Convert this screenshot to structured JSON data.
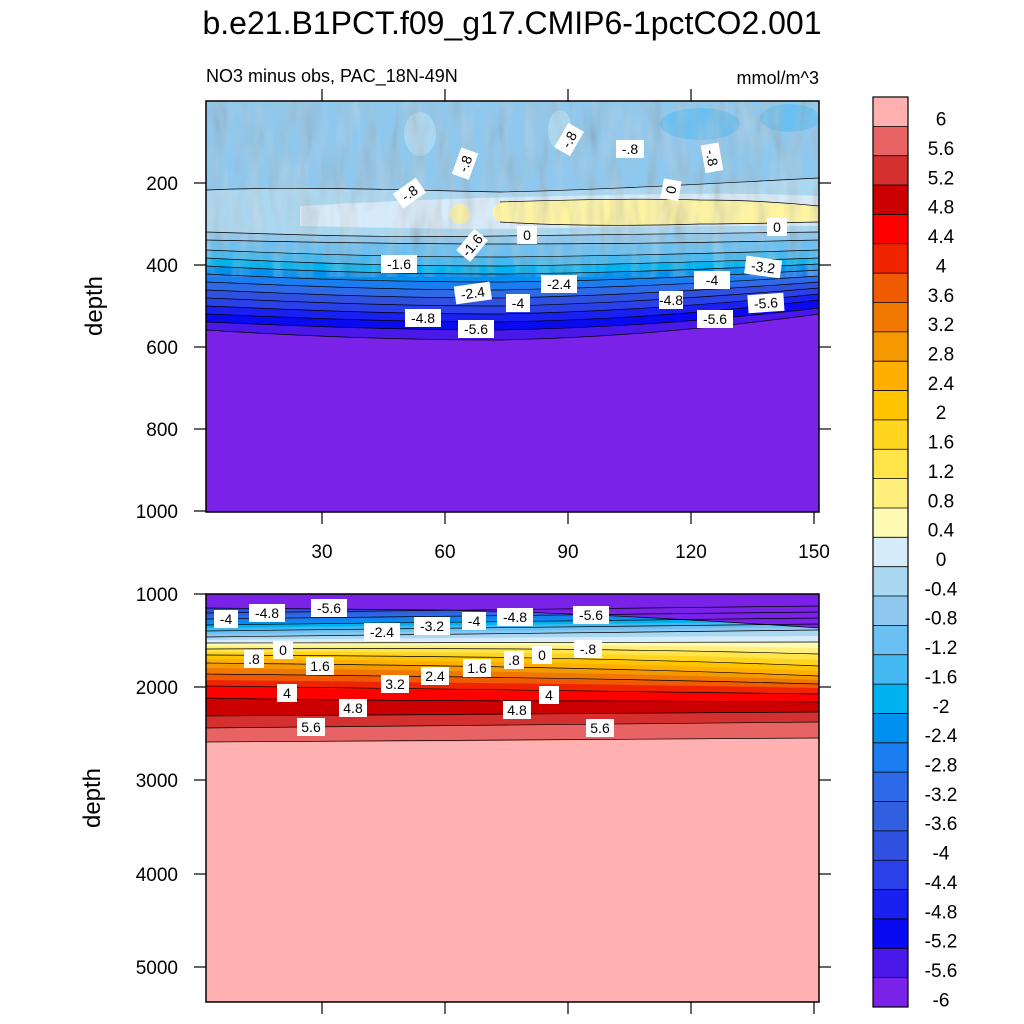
{
  "chart_data": {
    "type": "contour",
    "title": "b.e21.B1PCT.f09_g17.CMIP6-1pctCO2.001",
    "subtitle_left": "NO3 minus obs, PAC_18N-49N",
    "units": "mmol/m^3",
    "colorbar": {
      "levels": [
        "6",
        "5.6",
        "5.2",
        "4.8",
        "4.4",
        "4",
        "3.6",
        "3.2",
        "2.8",
        "2.4",
        "2",
        "1.6",
        "1.2",
        "0.8",
        "0.4",
        "0",
        "-0.4",
        "-0.8",
        "-1.2",
        "-1.6",
        "-2",
        "-2.4",
        "-2.8",
        "-3.2",
        "-3.6",
        "-4",
        "-4.4",
        "-4.8",
        "-5.2",
        "-5.6",
        "-6"
      ],
      "colors": [
        "#ffb0b0",
        "#e86464",
        "#d43030",
        "#cc0000",
        "#ff0000",
        "#f02400",
        "#f05a00",
        "#f07800",
        "#f49a00",
        "#ffaf00",
        "#ffc400",
        "#ffd520",
        "#ffe44a",
        "#fff07e",
        "#fffab4",
        "#d7ecfa",
        "#aad8f2",
        "#8ec8ee",
        "#6ac0f2",
        "#44b8f0",
        "#00b2f0",
        "#0090f0",
        "#1a7ef0",
        "#2c6ae8",
        "#3060e0",
        "#3050e0",
        "#2a40e8",
        "#1a20f0",
        "#0a0af0",
        "#4a18e8",
        "#7a22e8"
      ]
    },
    "panels": [
      {
        "name": "upper-depth",
        "ylabel": "depth",
        "ylim": [
          1000,
          0
        ],
        "yticks": [
          "200",
          "400",
          "600",
          "800",
          "1000"
        ],
        "xlim": [
          0,
          151
        ],
        "xticks": [
          "30",
          "60",
          "90",
          "120",
          "150"
        ],
        "contour_labels": [
          "-.8",
          "-.8",
          "-.8",
          "-.8",
          "-.8",
          "0",
          "0",
          "0",
          "-1.6",
          "-1.6",
          "-3.2",
          "-2.4",
          "-2.4",
          "-4",
          "-4",
          "-4.8",
          "-4.8",
          "-5.6",
          "-5.6"
        ]
      },
      {
        "name": "lower-depth",
        "ylabel": "depth",
        "ylim": [
          5400,
          1000
        ],
        "yticks": [
          "1000",
          "2000",
          "3000",
          "4000",
          "5000"
        ],
        "xlim": [
          0,
          151
        ],
        "contour_labels": [
          "-4",
          "-4.8",
          "-5.6",
          "-2.4",
          "-3.2",
          "-4",
          "-4.8",
          "-5.6",
          ".8",
          "0",
          "1.6",
          "2.4",
          "1.6",
          ".8",
          "0",
          "-.8",
          "4",
          "3.2",
          "4",
          "4.8",
          "4.8",
          "5.6",
          "5.6"
        ]
      }
    ]
  }
}
